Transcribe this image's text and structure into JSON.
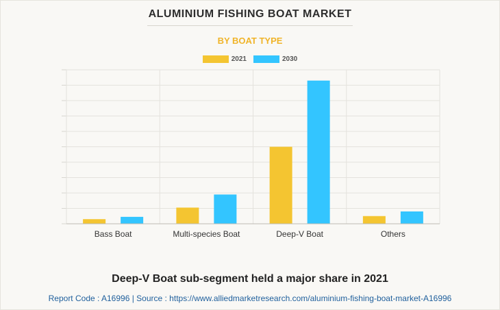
{
  "header": {
    "title": "ALUMINIUM FISHING BOAT MARKET",
    "subtitle": "BY BOAT TYPE"
  },
  "colors": {
    "series_2021": "#f4c531",
    "series_2030": "#33c5ff",
    "subtitle": "#f0b429",
    "source": "#1f5f9c"
  },
  "chart_data": {
    "type": "bar",
    "categories": [
      "Bass Boat",
      "Multi-species Boat",
      "Deep-V Boat",
      "Others"
    ],
    "series": [
      {
        "name": "2021",
        "values": [
          3,
          10.5,
          50,
          5
        ]
      },
      {
        "name": "2030",
        "values": [
          4.5,
          19,
          93,
          8
        ]
      }
    ],
    "ylim": [
      0,
      100
    ],
    "grid": true,
    "legend": "top-center",
    "xlabel": "",
    "ylabel": ""
  },
  "footer": {
    "caption": "Deep-V Boat sub-segment held a major share in 2021",
    "source": "Report Code : A16996  |  Source : https://www.alliedmarketresearch.com/aluminium-fishing-boat-market-A16996"
  }
}
